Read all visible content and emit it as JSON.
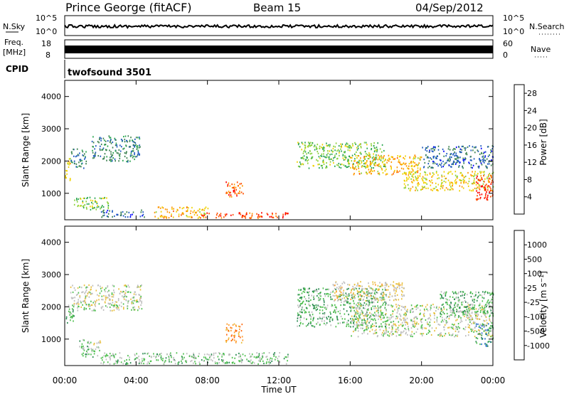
{
  "header": {
    "title": "Prince George (fitACF)",
    "beam": "Beam 15",
    "date": "04/Sep/2012"
  },
  "aux": {
    "nsky_label": "N.Sky",
    "nsearch_label": "N.Search",
    "freq_label_line1": "Freq.",
    "freq_label_line2": "[MHz]",
    "nave_label": "Nave",
    "cpid_label": "CPID",
    "noise_left_ticks": [
      "10^5",
      "10^0"
    ],
    "noise_right_ticks": [
      "10^5",
      "10^0"
    ],
    "freq_left_ticks": [
      "18",
      "8"
    ],
    "freq_right_ticks": [
      "60",
      "0"
    ],
    "cpid_text": "twofsound 3501"
  },
  "colors": {
    "power": [
      "#0000ff",
      "#1e5abe",
      "#3c8250",
      "#2aa650",
      "#8cd23c",
      "#f0d200",
      "#ff9600",
      "#ff5000",
      "#ff0000"
    ],
    "velocity": [
      "#2040b0",
      "#3070d0",
      "#2a8a50",
      "#50c050",
      "#bebebe",
      "#e8c040",
      "#ff9a28",
      "#ff6a10",
      "#ff0000"
    ]
  },
  "chart_data": [
    {
      "type": "heatmap",
      "ylabel": "Slant Range [km]",
      "yticks": [
        "1000",
        "2000",
        "3000",
        "4000"
      ],
      "ylim": [
        180,
        4500
      ],
      "xlim": [
        0,
        24
      ],
      "colorbar": {
        "label": "Power [dB]",
        "ticks": [
          "4",
          "8",
          "12",
          "16",
          "20",
          "24",
          "28"
        ],
        "range": [
          0,
          30
        ]
      },
      "regions": [
        {
          "t0": 0.0,
          "t1": 0.3,
          "r0": 1400,
          "r1": 2100,
          "level": 18
        },
        {
          "t0": 0.3,
          "t1": 1.2,
          "r0": 1800,
          "r1": 2400,
          "level": 8
        },
        {
          "t0": 0.5,
          "t1": 2.5,
          "r0": 500,
          "r1": 900,
          "level": 14
        },
        {
          "t0": 1.5,
          "t1": 4.2,
          "r0": 2000,
          "r1": 2800,
          "level": 8
        },
        {
          "t0": 2.0,
          "t1": 4.5,
          "r0": 280,
          "r1": 500,
          "level": 6
        },
        {
          "t0": 5.0,
          "t1": 8.0,
          "r0": 250,
          "r1": 600,
          "level": 20
        },
        {
          "t0": 7.5,
          "t1": 12.5,
          "r0": 250,
          "r1": 420,
          "level": 26
        },
        {
          "t0": 9.0,
          "t1": 10.0,
          "r0": 900,
          "r1": 1400,
          "level": 24
        },
        {
          "t0": 13.0,
          "t1": 18.0,
          "r0": 1800,
          "r1": 2600,
          "level": 14
        },
        {
          "t0": 16.0,
          "t1": 20.0,
          "r0": 1600,
          "r1": 2200,
          "level": 20
        },
        {
          "t0": 19.0,
          "t1": 24.0,
          "r0": 1100,
          "r1": 1700,
          "level": 18
        },
        {
          "t0": 23.0,
          "t1": 24.0,
          "r0": 800,
          "r1": 1600,
          "level": 27
        },
        {
          "t0": 20.0,
          "t1": 24.0,
          "r0": 1800,
          "r1": 2500,
          "level": 6
        }
      ]
    },
    {
      "type": "heatmap",
      "ylabel": "Slant Range [km]",
      "yticks": [
        "1000",
        "2000",
        "3000",
        "4000"
      ],
      "ylim": [
        180,
        4500
      ],
      "xlim": [
        0,
        24
      ],
      "xticks": [
        "00:00",
        "04:00",
        "08:00",
        "12:00",
        "16:00",
        "20:00",
        "00:00"
      ],
      "xlabel": "Time UT",
      "colorbar": {
        "label": "Velocity [m s^-1]",
        "ticks": [
          "1000",
          "500",
          "100",
          "25",
          "-25",
          "-100",
          "-500",
          "-1000"
        ],
        "range": [
          -1200,
          1200
        ]
      },
      "regions": [
        {
          "t0": 0.0,
          "t1": 0.5,
          "r0": 1500,
          "r1": 2100,
          "level": -300
        },
        {
          "t0": 0.3,
          "t1": 4.3,
          "r0": 1900,
          "r1": 2700,
          "level": 0
        },
        {
          "t0": 0.8,
          "t1": 2.0,
          "r0": 450,
          "r1": 1000,
          "level": -150
        },
        {
          "t0": 2.0,
          "t1": 12.5,
          "r0": 250,
          "r1": 600,
          "level": -200
        },
        {
          "t0": 9.0,
          "t1": 10.0,
          "r0": 900,
          "r1": 1500,
          "level": 600
        },
        {
          "t0": 13.0,
          "t1": 18.0,
          "r0": 1400,
          "r1": 2600,
          "level": -300
        },
        {
          "t0": 15.0,
          "t1": 19.0,
          "r0": 2200,
          "r1": 2800,
          "level": 150
        },
        {
          "t0": 16.0,
          "t1": 24.0,
          "r0": 1100,
          "r1": 2100,
          "level": 0
        },
        {
          "t0": 21.0,
          "t1": 24.0,
          "r0": 1700,
          "r1": 2500,
          "level": -300
        },
        {
          "t0": 23.0,
          "t1": 24.0,
          "r0": 800,
          "r1": 1500,
          "level": -600
        }
      ]
    }
  ]
}
